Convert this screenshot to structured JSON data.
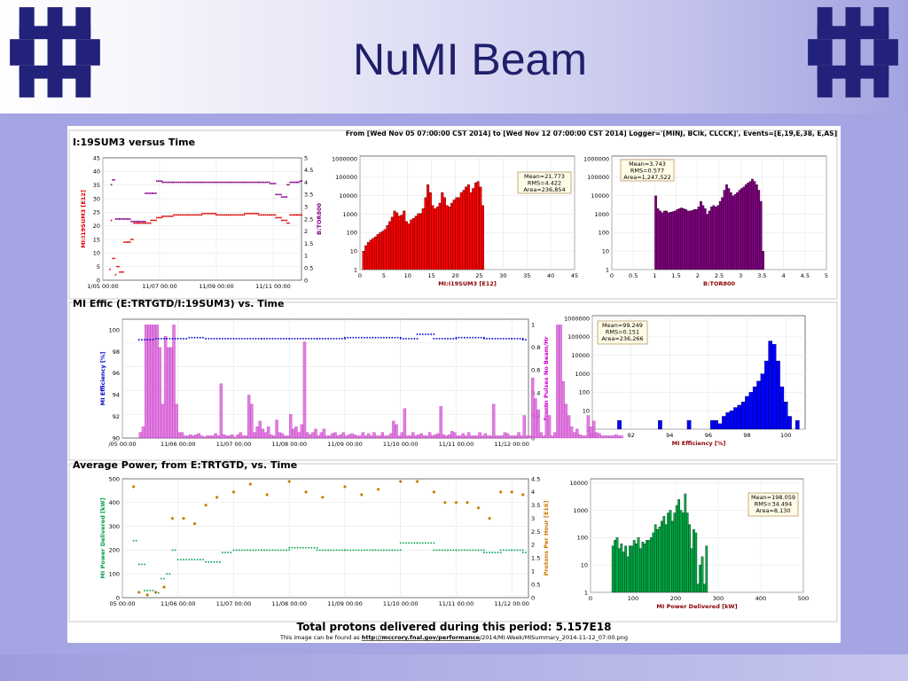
{
  "slide": {
    "title": "NuMI Beam"
  },
  "colors": {
    "title": "#1f1f6b",
    "logo": "#22227a"
  },
  "logos": [
    {
      "name": "fermilab-logo-left-icon"
    },
    {
      "name": "fermilab-logo-right-icon"
    }
  ],
  "header": {
    "range_text": "From [Wed Nov 05 07:00:00 CST 2014] to [Wed Nov 12 07:00:00 CST 2014] Logger='[MINJ, BClk, CLCCK]', Events=[E,19,E,38, E,AS]"
  },
  "footer": {
    "total_text": "Total protons delivered during this period: 5.157E18",
    "url_prefix": "This image can be found as ",
    "url_link": "http://mccrory.fnal.gov/performance",
    "url_rest": "/2014/MI-Week/MISummary_2014-11-12_07:00.png"
  },
  "chart_data": [
    {
      "type": "scatter",
      "title": "I:19SUM3 versus Time",
      "xlabel": "",
      "ylabel": "MI:I19SUM3 [E12]",
      "y2label": "B:TOR800",
      "x_ticks": [
        "1/05 00:00",
        "11/07 00:00",
        "11/09 00:00",
        "11/11 00:00"
      ],
      "x_tick_days": [
        0,
        2,
        4,
        6
      ],
      "xlim_days": [
        0,
        7
      ],
      "ylim": [
        0,
        45
      ],
      "y_ticks": [
        0,
        5,
        10,
        15,
        20,
        25,
        30,
        35,
        40,
        45
      ],
      "y2lim": [
        0,
        5
      ],
      "y2_ticks": [
        0,
        0.5,
        1,
        1.5,
        2,
        2.5,
        3,
        3.5,
        4,
        4.5,
        5
      ],
      "colors": {
        "I19SUM3": "#dd0000",
        "TOR800": "#880088"
      },
      "series": [
        {
          "name": "MI:I19SUM3",
          "x": [
            0.25,
            0.3,
            0.35,
            0.45,
            0.5,
            0.6,
            0.75,
            0.9,
            1.0,
            1.1,
            1.25,
            1.5,
            1.7,
            1.9,
            2.1,
            2.5,
            3.0,
            3.5,
            4.0,
            4.5,
            5.0,
            5.5,
            5.9,
            6.1,
            6.3,
            6.5,
            6.6,
            6.75,
            6.85,
            6.95
          ],
          "y": [
            4,
            22,
            8,
            2,
            5,
            3,
            14,
            14,
            15,
            21,
            21,
            21,
            22,
            23,
            23.5,
            24,
            24,
            24.5,
            24,
            24,
            24.5,
            24,
            24,
            23,
            22,
            21,
            24,
            24,
            24,
            24
          ]
        },
        {
          "name": "B:TOR800",
          "x": [
            0.3,
            0.35,
            0.45,
            0.6,
            0.75,
            0.9,
            1.0,
            1.25,
            1.5,
            1.75,
            1.9,
            2.1,
            2.5,
            3.0,
            3.5,
            4.0,
            4.5,
            5.0,
            5.5,
            5.9,
            6.1,
            6.3,
            6.5,
            6.6,
            6.75,
            6.85,
            6.95
          ],
          "y": [
            3.9,
            4.1,
            2.5,
            2.5,
            2.5,
            2.5,
            2.4,
            2.4,
            3.55,
            3.55,
            4.05,
            4.0,
            4.0,
            4.0,
            4.0,
            4.0,
            4.0,
            4.0,
            4.0,
            3.95,
            3.5,
            3.4,
            3.9,
            4.0,
            4.0,
            4.0,
            4.05
          ]
        }
      ]
    },
    {
      "type": "bar",
      "title": "",
      "xlabel": "MI:I19SUM3 [E12]",
      "ylabel": "",
      "log_y": true,
      "x_ticks": [
        0,
        5,
        10,
        15,
        20,
        25,
        30,
        35,
        40,
        45
      ],
      "xlim": [
        0,
        45
      ],
      "y_ticks": [
        "1",
        "10",
        "100",
        "1000",
        "10000",
        "100000",
        "1000000"
      ],
      "stats": [
        "Mean=21.773",
        "RMS=4.422",
        "Area=236,854"
      ],
      "color": "#ff0000",
      "bin_width": 0.5,
      "bin_start": 0.5,
      "values": [
        10,
        20,
        30,
        40,
        50,
        60,
        80,
        100,
        120,
        150,
        250,
        400,
        700,
        1500,
        1200,
        800,
        900,
        1500,
        400,
        300,
        500,
        600,
        800,
        1100,
        1100,
        2000,
        8000,
        40000,
        15000,
        3000,
        2000,
        2500,
        4000,
        15000,
        8000,
        3000,
        2500,
        4000,
        6000,
        8000,
        8000,
        15000,
        20000,
        30000,
        40000,
        15000,
        25000,
        50000,
        60000,
        30000,
        3000
      ]
    },
    {
      "type": "bar",
      "title": "",
      "xlabel": "B:TOR800",
      "ylabel": "",
      "log_y": true,
      "x_ticks": [
        0,
        0.5,
        1,
        1.5,
        2,
        2.5,
        3,
        3.5,
        4,
        4.5,
        5
      ],
      "xlim": [
        0,
        5
      ],
      "y_ticks": [
        "1",
        "10",
        "100",
        "1000",
        "10000",
        "100000",
        "1000000"
      ],
      "stats": [
        "Mean=3.743",
        "RMS=0.577",
        "Area=1,247,522"
      ],
      "color": "#800080",
      "bin_width": 0.05,
      "bin_start": 1.0,
      "values": [
        10000,
        2000,
        1500,
        1200,
        1500,
        1500,
        1200,
        1300,
        1400,
        1500,
        1800,
        2000,
        2200,
        2000,
        1800,
        1500,
        1500,
        1600,
        1800,
        1800,
        2500,
        5000,
        3000,
        2000,
        1000,
        1500,
        2500,
        3000,
        2500,
        3000,
        5000,
        8000,
        20000,
        40000,
        25000,
        15000,
        10000,
        12000,
        15000,
        20000,
        25000,
        30000,
        40000,
        50000,
        60000,
        80000,
        60000,
        40000,
        20000,
        5000,
        10
      ]
    },
    {
      "type": "scatter",
      "title": "MI Effic (E:TRTGTD/I:19SUM3) vs. Time",
      "xlabel": "",
      "ylabel": "MI Efficiency [%]",
      "y2label": "Fractn Pulses No Beam/Hr",
      "x_ticks": [
        "/05 00:00",
        "11/06 00:00",
        "11/07 00:00",
        "11/08 00:00",
        "11/09 00:00",
        "11/10 00:00",
        "11/11 00:00",
        "11/12 00:00"
      ],
      "x_tick_days": [
        0,
        1,
        2,
        3,
        4,
        5,
        6,
        7
      ],
      "xlim_days": [
        0,
        7.3
      ],
      "ylim": [
        90,
        101
      ],
      "y_ticks": [
        90,
        92,
        94,
        96,
        98,
        100
      ],
      "y2lim": [
        0,
        1.05
      ],
      "y2_ticks": [
        0,
        0.2,
        0.4,
        0.6,
        0.8,
        1
      ],
      "colors": {
        "eff": "#0000cc",
        "frac": "#cc00cc"
      },
      "series": [
        {
          "name": "MI Efficiency",
          "x": [
            0.3,
            0.6,
            0.9,
            1.2,
            1.5,
            2.0,
            2.5,
            3.0,
            3.5,
            4.0,
            4.5,
            5.0,
            5.3,
            5.6,
            6.0,
            6.5,
            7.0,
            7.2
          ],
          "y": [
            99.1,
            99.2,
            99.2,
            99.3,
            99.2,
            99.2,
            99.2,
            99.2,
            99.2,
            99.3,
            99.3,
            99.2,
            99.6,
            99.2,
            99.3,
            99.2,
            99.2,
            99.1
          ]
        },
        {
          "name": "Fractn Pulses No Beam/Hr",
          "bin_days": 0.05,
          "start_day": 0.3,
          "values": [
            0.05,
            0.1,
            1.0,
            1.0,
            1.0,
            1.0,
            1.0,
            0.8,
            0.3,
            0.9,
            0.8,
            0.8,
            1.0,
            0.3,
            0.05,
            0.05,
            0.02,
            0.02,
            0.03,
            0.02,
            0.03,
            0.04,
            0.02,
            0.01,
            0.02,
            0.02,
            0.02,
            0.04,
            0.02,
            0.48,
            0.03,
            0.02,
            0.02,
            0.03,
            0.01,
            0.03,
            0.05,
            0.02,
            0.02,
            0.38,
            0.3,
            0.05,
            0.1,
            0.15,
            0.08,
            0.05,
            0.1,
            0.03,
            0.02,
            0.16,
            0.05,
            0.04,
            0.02,
            0.02,
            0.21,
            0.08,
            0.1,
            0.05,
            0.12,
            0.85,
            0.05,
            0.03,
            0.05,
            0.08,
            0.02,
            0.05,
            0.08,
            0.02,
            0.02,
            0.04,
            0.05,
            0.02,
            0.03,
            0.05,
            0.02,
            0.03,
            0.04,
            0.03,
            0.02,
            0.02,
            0.05,
            0.02,
            0.04,
            0.02,
            0.05,
            0.02,
            0.02,
            0.05,
            0.02,
            0.02,
            0.04,
            0.15,
            0.12,
            0.02,
            0.05,
            0.26,
            0.02,
            0.02,
            0.05,
            0.02,
            0.03,
            0.04,
            0.02,
            0.02,
            0.05,
            0.02,
            0.03,
            0.04,
            0.28,
            0.03,
            0.02,
            0.03,
            0.06,
            0.05,
            0.02,
            0.02,
            0.04,
            0.02,
            0.05,
            0.02,
            0.02,
            0.02,
            0.05,
            0.02,
            0.04,
            0.02,
            0.02,
            0.3,
            0.02,
            0.02,
            0.02,
            0.05,
            0.04,
            0.02,
            0.02,
            0.02,
            0.05,
            0.02,
            0.2,
            0.02,
            0.02,
            0.53,
            0.35,
            0.25,
            0.05,
            0.02,
            0.3,
            0.2,
            0.02,
            0.05,
            1.0,
            1.0,
            0.5,
            0.3,
            0.2,
            0.1,
            0.05,
            0.08,
            0.03,
            0.02,
            0.02,
            0.2,
            0.1,
            0.15,
            0.05,
            0.04,
            0.02,
            0.02,
            0.02,
            0.02,
            0.02,
            0.03,
            0.02,
            0.02
          ]
        }
      ]
    },
    {
      "type": "bar",
      "title": "",
      "xlabel": "MI Efficiency [%]",
      "ylabel": "",
      "log_y": true,
      "x_ticks": [
        90,
        92,
        94,
        96,
        98,
        100
      ],
      "xlim": [
        90,
        101
      ],
      "y_ticks": [
        "1",
        "10",
        "100",
        "1000",
        "10000",
        "100000",
        "1000000"
      ],
      "stats": [
        "Mean=99.249",
        "RMS=0.151",
        "Area=236,266"
      ],
      "color": "#0000ff",
      "bin_width": 0.2,
      "bars": [
        [
          91.3,
          3
        ],
        [
          93.4,
          3
        ],
        [
          94.9,
          3
        ],
        [
          96.1,
          3
        ],
        [
          96.3,
          3
        ],
        [
          96.5,
          2
        ],
        [
          96.7,
          5
        ],
        [
          96.9,
          8
        ],
        [
          97.1,
          10
        ],
        [
          97.3,
          15
        ],
        [
          97.5,
          20
        ],
        [
          97.7,
          30
        ],
        [
          97.9,
          60
        ],
        [
          98.1,
          100
        ],
        [
          98.3,
          200
        ],
        [
          98.5,
          400
        ],
        [
          98.7,
          1000
        ],
        [
          98.9,
          5000
        ],
        [
          99.1,
          60000
        ],
        [
          99.3,
          40000
        ],
        [
          99.5,
          5000
        ],
        [
          99.7,
          200
        ],
        [
          99.9,
          30
        ],
        [
          100.1,
          5
        ],
        [
          100.5,
          3
        ]
      ]
    },
    {
      "type": "scatter",
      "title": "Average Power, from E:TRTGTD, vs. Time",
      "xlabel": "",
      "ylabel": "MI Power Delivered [kW]",
      "y2label": "Protons Per Hour [E16]",
      "x_ticks": [
        "05 00:00",
        "11/06 00:00",
        "11/07 00:00",
        "11/08 00:00",
        "11/09 00:00",
        "11/10 00:00",
        "11/11 00:00",
        "11/12 00:00"
      ],
      "x_tick_days": [
        0,
        1,
        2,
        3,
        4,
        5,
        6,
        7
      ],
      "xlim_days": [
        0,
        7.3
      ],
      "ylim": [
        0,
        500
      ],
      "y_ticks": [
        0,
        100,
        200,
        300,
        400,
        500
      ],
      "y2lim": [
        0,
        4.5
      ],
      "y2_ticks": [
        0,
        0.5,
        1,
        1.5,
        2,
        2.5,
        3,
        3.5,
        4,
        4.5
      ],
      "colors": {
        "power": "#00a050",
        "protons": "#cc7700"
      },
      "series": [
        {
          "name": "MI Power Delivered",
          "x": [
            0.2,
            0.3,
            0.4,
            0.6,
            0.7,
            0.8,
            0.9,
            1.0,
            1.2,
            1.5,
            1.8,
            2.0,
            2.5,
            3.0,
            3.5,
            4.0,
            4.5,
            5.0,
            5.3,
            5.6,
            6.0,
            6.5,
            6.8,
            7.0,
            7.2
          ],
          "y": [
            240,
            140,
            30,
            20,
            80,
            100,
            200,
            160,
            160,
            150,
            190,
            200,
            200,
            210,
            200,
            200,
            200,
            230,
            230,
            200,
            200,
            190,
            200,
            200,
            190
          ]
        },
        {
          "name": "Protons Per Hour",
          "x": [
            0.2,
            0.3,
            0.45,
            0.6,
            0.75,
            0.9,
            1.1,
            1.3,
            1.5,
            1.7,
            2.0,
            2.3,
            2.6,
            3.0,
            3.3,
            3.6,
            4.0,
            4.3,
            4.6,
            5.0,
            5.3,
            5.6,
            5.8,
            6.0,
            6.2,
            6.4,
            6.6,
            6.8,
            7.0,
            7.2
          ],
          "y": [
            4.2,
            0.2,
            0.1,
            0.2,
            0.4,
            3.0,
            3.0,
            2.8,
            3.5,
            3.8,
            4.0,
            4.3,
            3.9,
            4.4,
            4.0,
            3.8,
            4.2,
            3.9,
            4.1,
            4.4,
            4.4,
            4.0,
            3.6,
            3.6,
            3.6,
            3.4,
            3.0,
            4.0,
            4.0,
            3.9
          ]
        }
      ]
    },
    {
      "type": "bar",
      "title": "",
      "xlabel": "MI Power Delivered [kW]",
      "ylabel": "",
      "log_y": true,
      "x_ticks": [
        0,
        100,
        200,
        300,
        400,
        500
      ],
      "xlim": [
        0,
        500
      ],
      "y_ticks": [
        "1",
        "10",
        "100",
        "1000",
        "10000"
      ],
      "stats": [
        "Mean=198.059",
        "RMS=34.494",
        "Area=8,130"
      ],
      "color": "#00aa44",
      "bin_width": 5,
      "bin_start": 50,
      "values": [
        50,
        80,
        100,
        40,
        60,
        30,
        50,
        20,
        50,
        50,
        80,
        60,
        100,
        40,
        70,
        60,
        80,
        80,
        100,
        150,
        300,
        200,
        250,
        400,
        600,
        300,
        800,
        1000,
        400,
        800,
        1500,
        2500,
        1000,
        800,
        4000,
        800,
        300,
        40,
        200,
        150,
        2,
        10,
        20,
        2,
        50
      ]
    }
  ]
}
